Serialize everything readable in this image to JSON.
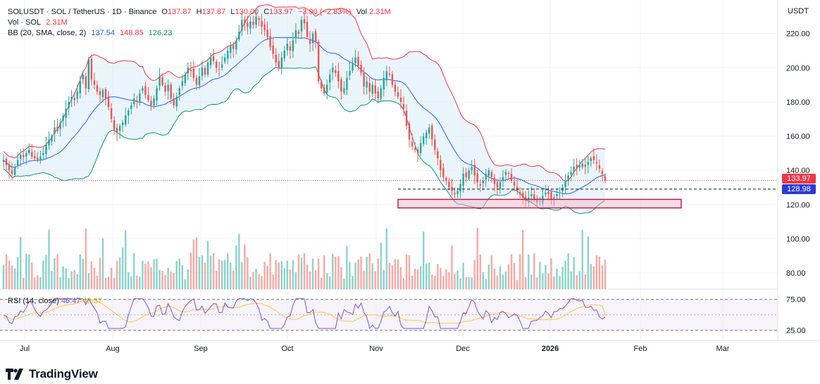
{
  "header": {
    "symbol": "SOLUSDT · SOL / TetherUS · 1D · Binance",
    "ohlc": {
      "o_label": "O",
      "o": "137.87",
      "h_label": "H",
      "h": "137.87",
      "l_label": "L",
      "l": "130.00",
      "c_label": "C",
      "c": "133.97",
      "change": "−3.90 (−2.83%)"
    },
    "vol_label": "Vol",
    "vol": "2.31M",
    "vol_row_label": "Vol · SOL",
    "vol_row_value": "2.31M",
    "bb_label": "BB (20, SMA, close, 2)",
    "bb_basis": "137.54",
    "bb_upper": "148.85",
    "bb_lower": "126.23"
  },
  "rsi": {
    "label": "RSI (14, close)",
    "value": "46.47",
    "ma": "49.37"
  },
  "axis": {
    "unit": "USDT",
    "price_ticks": [
      "220.00",
      "200.00",
      "180.00",
      "160.00",
      "140.00",
      "120.00",
      "100.00",
      "80.00"
    ],
    "rsi_ticks": [
      "75.00",
      "25.00"
    ],
    "time_ticks": [
      "Jul",
      "Aug",
      "Sep",
      "Oct",
      "Nov",
      "Dec",
      "2026",
      "Feb",
      "Mar"
    ]
  },
  "tags": {
    "last_price": "133.97",
    "level": "128.98"
  },
  "brand": "TradingView",
  "colors": {
    "up": "#26a69a",
    "down": "#ef5350",
    "bb_upper": "#f23645",
    "bb_basis": "#2962ff",
    "bb_lower": "#089981",
    "rsi": "#7e57c2",
    "rsi_ma": "#f7c948",
    "zone": "#f23645"
  },
  "chart_data": {
    "type": "candlestick",
    "symbol": "SOLUSDT",
    "interval": "1D",
    "ylim": [
      75,
      228
    ],
    "closes": [
      146,
      143,
      140,
      138,
      142,
      146,
      149,
      148,
      150,
      152,
      148,
      147,
      146,
      148,
      150,
      155,
      158,
      160,
      165,
      163,
      168,
      172,
      176,
      180,
      183,
      181,
      186,
      192,
      196,
      188,
      205,
      193,
      190,
      186,
      184,
      187,
      182,
      177,
      170,
      164,
      162,
      166,
      168,
      172,
      175,
      178,
      182,
      180,
      185,
      188,
      184,
      181,
      178,
      182,
      188,
      195,
      190,
      186,
      190,
      182,
      178,
      183,
      188,
      192,
      196,
      200,
      198,
      194,
      190,
      195,
      200,
      196,
      203,
      206,
      204,
      200,
      199,
      202,
      206,
      210,
      213,
      211,
      216,
      221,
      228,
      226,
      224,
      227,
      225,
      230,
      228,
      224,
      222,
      218,
      212,
      208,
      203,
      200,
      206,
      210,
      214,
      210,
      216,
      222,
      220,
      228,
      226,
      218,
      214,
      220,
      215,
      192,
      188,
      185,
      190,
      196,
      200,
      197,
      192,
      186,
      188,
      194,
      198,
      202,
      206,
      201,
      197,
      189,
      192,
      186,
      190,
      185,
      182,
      188,
      194,
      198,
      196,
      190,
      186,
      183,
      180,
      176,
      166,
      158,
      154,
      152,
      150,
      156,
      160,
      162,
      165,
      158,
      152,
      147,
      140,
      136,
      134,
      130,
      128,
      126,
      128,
      132,
      138,
      136,
      140,
      142,
      137,
      133,
      131,
      134,
      138,
      140,
      136,
      132,
      130,
      133,
      136,
      139,
      138,
      134,
      131,
      128,
      126,
      124,
      122,
      124,
      126,
      123,
      121,
      122,
      125,
      127,
      126,
      123,
      124,
      126,
      127,
      130,
      134,
      137,
      139,
      142,
      141,
      143,
      144,
      142,
      145,
      147,
      146,
      144,
      141,
      137.87,
      133.97
    ],
    "bollinger": {
      "period": 20,
      "upper": 148.85,
      "basis": 137.54,
      "lower": 126.23
    },
    "volume_unit": "SOL",
    "last_volume": "2.31M",
    "rsi_period": 14,
    "rsi_last": 46.47,
    "rsi_ma_last": 49.37,
    "horizontal_level": 128.98,
    "support_zone": [
      118,
      123
    ]
  }
}
